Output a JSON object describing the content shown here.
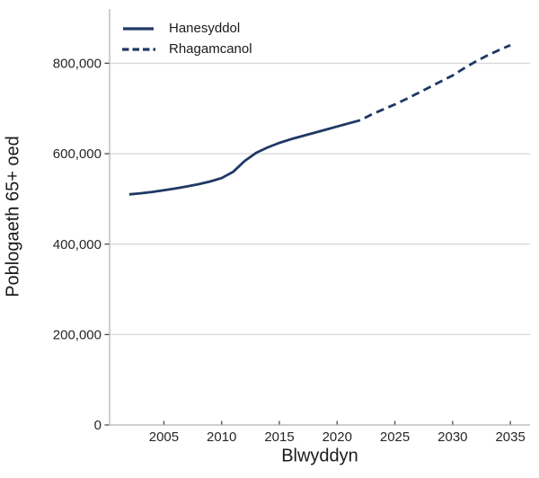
{
  "colors": {
    "line": "#1f3864",
    "grid": "#d9d9d9",
    "spine": "#c1c1c1",
    "tick": "#4a4a4a",
    "text": "#262626",
    "background": "#ffffff"
  },
  "chart_data": {
    "type": "line",
    "title": "",
    "xlabel": "Blwyddyn",
    "ylabel": "Poblogaeth 65+ oed",
    "xlim": [
      2000.3,
      2036.7
    ],
    "ylim": [
      0,
      920000
    ],
    "x_ticks": [
      2005,
      2010,
      2015,
      2020,
      2025,
      2030,
      2035
    ],
    "x_tick_labels": [
      "2005",
      "2010",
      "2015",
      "2020",
      "2025",
      "2030",
      "2035"
    ],
    "y_ticks": [
      0,
      200000,
      400000,
      600000,
      800000
    ],
    "y_tick_labels": [
      "0",
      "200,000",
      "400,000",
      "600,000",
      "800,000"
    ],
    "grid": "horizontal",
    "legend_position": "top-left",
    "series": [
      {
        "name": "Hanesyddol",
        "style": "solid",
        "color": "#1f3864",
        "x": [
          2002,
          2003,
          2004,
          2005,
          2006,
          2007,
          2008,
          2009,
          2010,
          2011,
          2012,
          2013,
          2014,
          2015,
          2016,
          2017,
          2018,
          2019,
          2020,
          2021,
          2022
        ],
        "y": [
          510000,
          512500,
          515500,
          519000,
          523000,
          527500,
          532500,
          538500,
          546000,
          560000,
          584000,
          602000,
          614000,
          624000,
          632000,
          639000,
          646000,
          653000,
          660000,
          667000,
          674000
        ]
      },
      {
        "name": "Rhagamcanol",
        "style": "dashed",
        "color": "#1f3864",
        "x": [
          2022,
          2023,
          2024,
          2025,
          2026,
          2027,
          2028,
          2029,
          2030,
          2031,
          2032,
          2033,
          2034,
          2035
        ],
        "y": [
          674000,
          687000,
          698000,
          709000,
          721000,
          734000,
          747000,
          760000,
          773000,
          789000,
          804000,
          817000,
          829000,
          840000
        ]
      }
    ]
  }
}
